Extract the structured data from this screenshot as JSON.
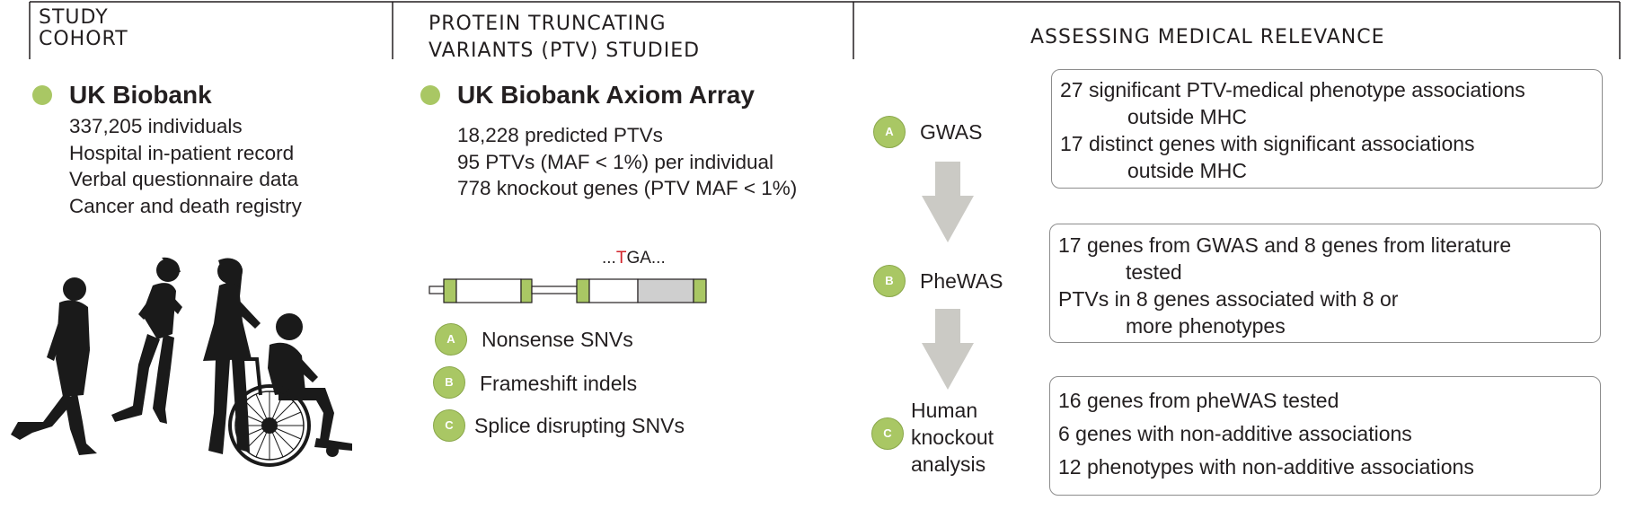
{
  "headers": {
    "study_cohort": [
      "STUDY",
      "COHORT"
    ],
    "ptv_studied": [
      "PROTEIN TRUNCATING",
      "VARIANTS (PTV) STUDIED"
    ],
    "medical_relevance": "ASSESSING MEDICAL RELEVANCE"
  },
  "cohort": {
    "title": "UK Biobank",
    "items": [
      "337,205 individuals",
      "Hospital in-patient record",
      "Verbal questionnaire data",
      "Cancer and death registry"
    ]
  },
  "array": {
    "title": "UK Biobank Axiom Array",
    "items": [
      "18,228 predicted PTVs",
      "95 PTVs (MAF < 1%) per individual",
      "778 knockout genes (PTV MAF < 1%)"
    ],
    "sequence_prefix": "...",
    "sequence_highlight": "T",
    "sequence_suffix": "GA...",
    "variant_types": [
      {
        "badge": "A",
        "label": "Nonsense SNVs"
      },
      {
        "badge": "B",
        "label": "Frameshift indels"
      },
      {
        "badge": "C",
        "label": "Splice disrupting SNVs"
      }
    ]
  },
  "analyses": [
    {
      "badge": "A",
      "label": "GWAS"
    },
    {
      "badge": "B",
      "label": "PheWAS"
    },
    {
      "badge": "C",
      "label_lines": [
        "Human",
        "knockout",
        "analysis"
      ]
    }
  ],
  "results": {
    "gwas": [
      {
        "first": "27 significant PTV-medical phenotype associations",
        "rest": "outside MHC"
      },
      {
        "first": "17 distinct genes with significant associations",
        "rest": "outside MHC"
      }
    ],
    "phewas": [
      {
        "first": "17 genes from GWAS and 8 genes from literature",
        "rest": "tested"
      },
      {
        "first": "PTVs in 8 genes associated with 8 or",
        "rest": "more phenotypes"
      }
    ],
    "knockout": [
      "16 genes from pheWAS tested",
      "6 genes with non-additive associations",
      "12 phenotypes with non-additive associations"
    ]
  },
  "colors": {
    "accent_green": "#a9c764",
    "arrow_gray": "#cbcac5",
    "highlight_red": "#d2232a",
    "exon_gray": "#cfcfcf",
    "silhouette": "#1a1a1a"
  }
}
